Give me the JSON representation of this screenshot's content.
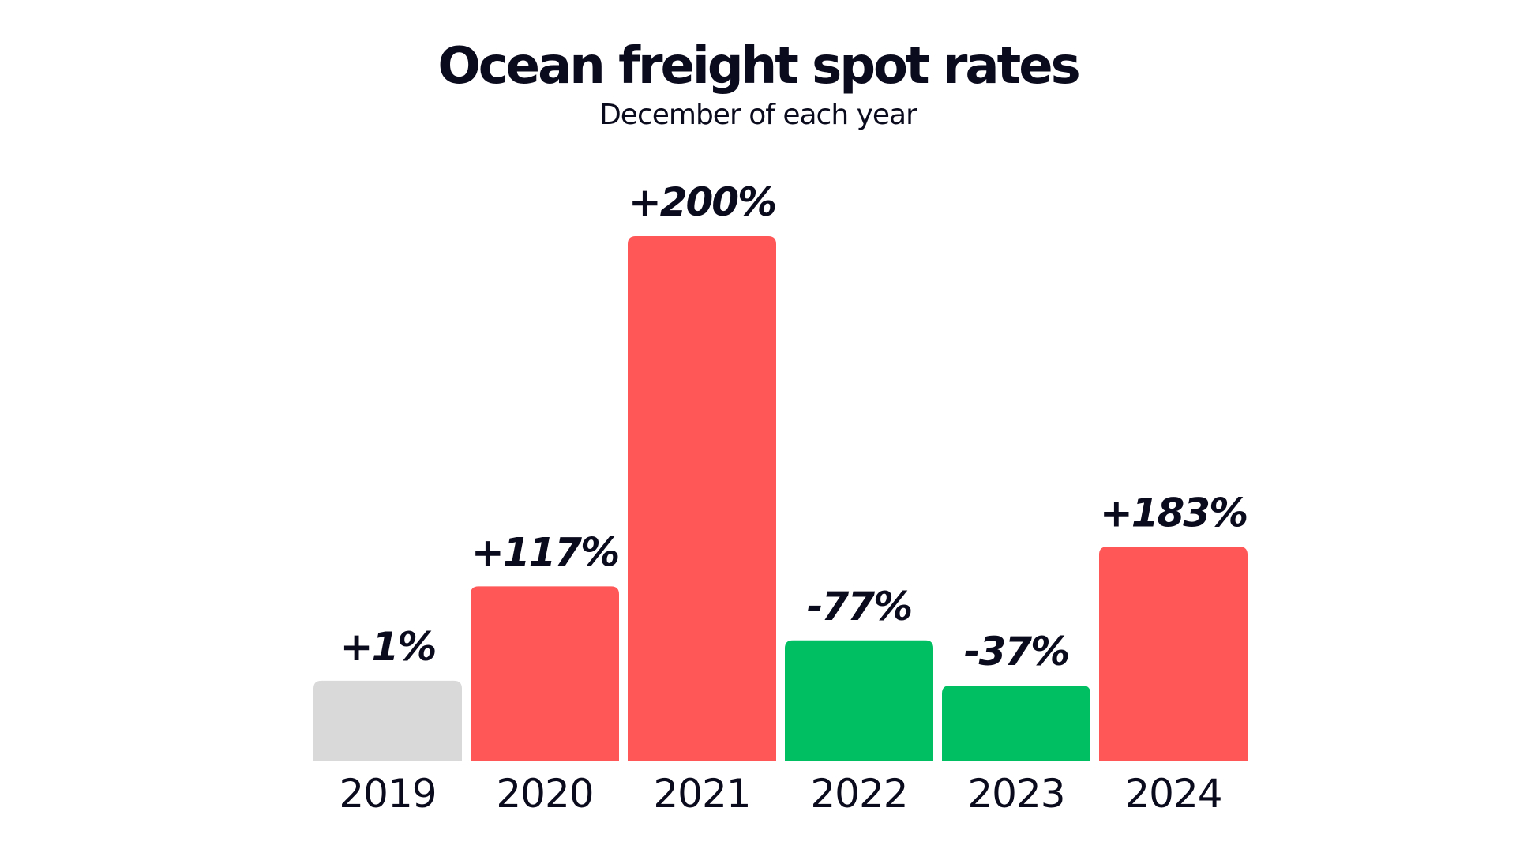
{
  "chart_data": {
    "type": "bar",
    "title": "Ocean freight spot rates",
    "subtitle": "December of each year",
    "xlabel": "",
    "ylabel": "",
    "categories": [
      "2019",
      "2020",
      "2021",
      "2022",
      "2023",
      "2024"
    ],
    "values": [
      100,
      217,
      651,
      150,
      94,
      266
    ],
    "value_labels": [
      "+1%",
      "+117%",
      "+200%",
      "-77%",
      "-37%",
      "+183%"
    ],
    "bar_colors": [
      "#d9d9d9",
      "#ff5757",
      "#ff5757",
      "#00bf63",
      "#00bf63",
      "#ff5757"
    ],
    "ylim": [
      0,
      651
    ],
    "grid": false,
    "legend": "none"
  }
}
